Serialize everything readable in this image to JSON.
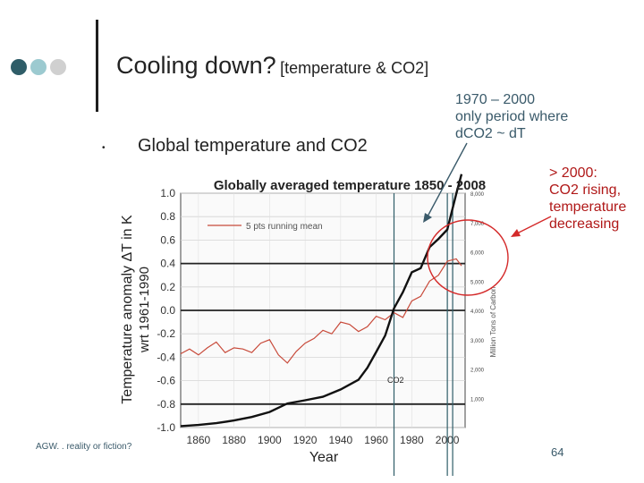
{
  "slide": {
    "title_main": "Cooling down?",
    "title_sub": "[temperature & CO2]",
    "bullet_symbol": "•",
    "bullet_text": "Global temperature and CO2",
    "note_period": [
      "1970 – 2000",
      "only period where",
      "dCO2 ~ dT"
    ],
    "note_recent": [
      "> 2000:",
      "CO2  rising,",
      "temperature",
      "decreasing"
    ],
    "footer": "AGW. . reality or fiction?",
    "page_number": "64",
    "dot_colors": [
      "#2f5d68",
      "#9ccad0",
      "#d0d0d0"
    ]
  },
  "chart_data": {
    "type": "line",
    "title": "Globally averaged temperature 1850 - 2008",
    "xlabel": "Year",
    "ylabel_left": "Temperature anomaly ΔT in K",
    "ylabel_left_sub": "wrt 1961-1990",
    "ylabel_right": "Million Tons of Carbon",
    "xlim": [
      1850,
      2010
    ],
    "ylim": [
      -1.0,
      1.0
    ],
    "y2lim": [
      0,
      8000
    ],
    "x_ticks": [
      1860,
      1880,
      1900,
      1920,
      1940,
      1960,
      1980,
      2000
    ],
    "y_ticks": [
      "-1.0",
      "-0.8",
      "-0.6",
      "-0.4",
      "-0.2",
      "0.0",
      "0.2",
      "0.4",
      "0.6",
      "0.8",
      "1.0"
    ],
    "y2_ticks": [
      "1,000",
      "2,000",
      "3,000",
      "4,000",
      "5,000",
      "6,000",
      "7,000",
      "8,000"
    ],
    "legend": "5 pts  running mean",
    "co2_label": "CO2",
    "series": [
      {
        "name": "Temperature anomaly (5 pts running mean)",
        "color": "#c84a3a",
        "axis": "left",
        "x": [
          1850,
          1855,
          1860,
          1865,
          1870,
          1875,
          1880,
          1885,
          1890,
          1895,
          1900,
          1905,
          1910,
          1915,
          1920,
          1925,
          1930,
          1935,
          1940,
          1945,
          1950,
          1955,
          1960,
          1965,
          1970,
          1975,
          1980,
          1985,
          1990,
          1995,
          2000,
          2005,
          2008
        ],
        "y": [
          -0.37,
          -0.33,
          -0.38,
          -0.32,
          -0.27,
          -0.36,
          -0.32,
          -0.33,
          -0.36,
          -0.28,
          -0.25,
          -0.38,
          -0.45,
          -0.35,
          -0.28,
          -0.24,
          -0.17,
          -0.2,
          -0.1,
          -0.12,
          -0.18,
          -0.14,
          -0.05,
          -0.08,
          -0.02,
          -0.06,
          0.08,
          0.12,
          0.25,
          0.3,
          0.42,
          0.44,
          0.38
        ]
      },
      {
        "name": "CO2 emissions",
        "color": "#111111",
        "axis": "right",
        "x": [
          1850,
          1860,
          1870,
          1880,
          1890,
          1900,
          1910,
          1920,
          1930,
          1940,
          1950,
          1955,
          1960,
          1965,
          1970,
          1975,
          1980,
          1985,
          1990,
          1995,
          2000,
          2005,
          2008
        ],
        "y": [
          50,
          90,
          150,
          240,
          360,
          530,
          820,
          930,
          1050,
          1300,
          1630,
          2040,
          2580,
          3140,
          4070,
          4620,
          5300,
          5440,
          6160,
          6440,
          6760,
          7980,
          8650
        ]
      }
    ],
    "reference_lines_x": [
      1970,
      2000,
      2003
    ],
    "reference_lines_y": [
      0.0,
      0.4,
      -0.8
    ]
  }
}
